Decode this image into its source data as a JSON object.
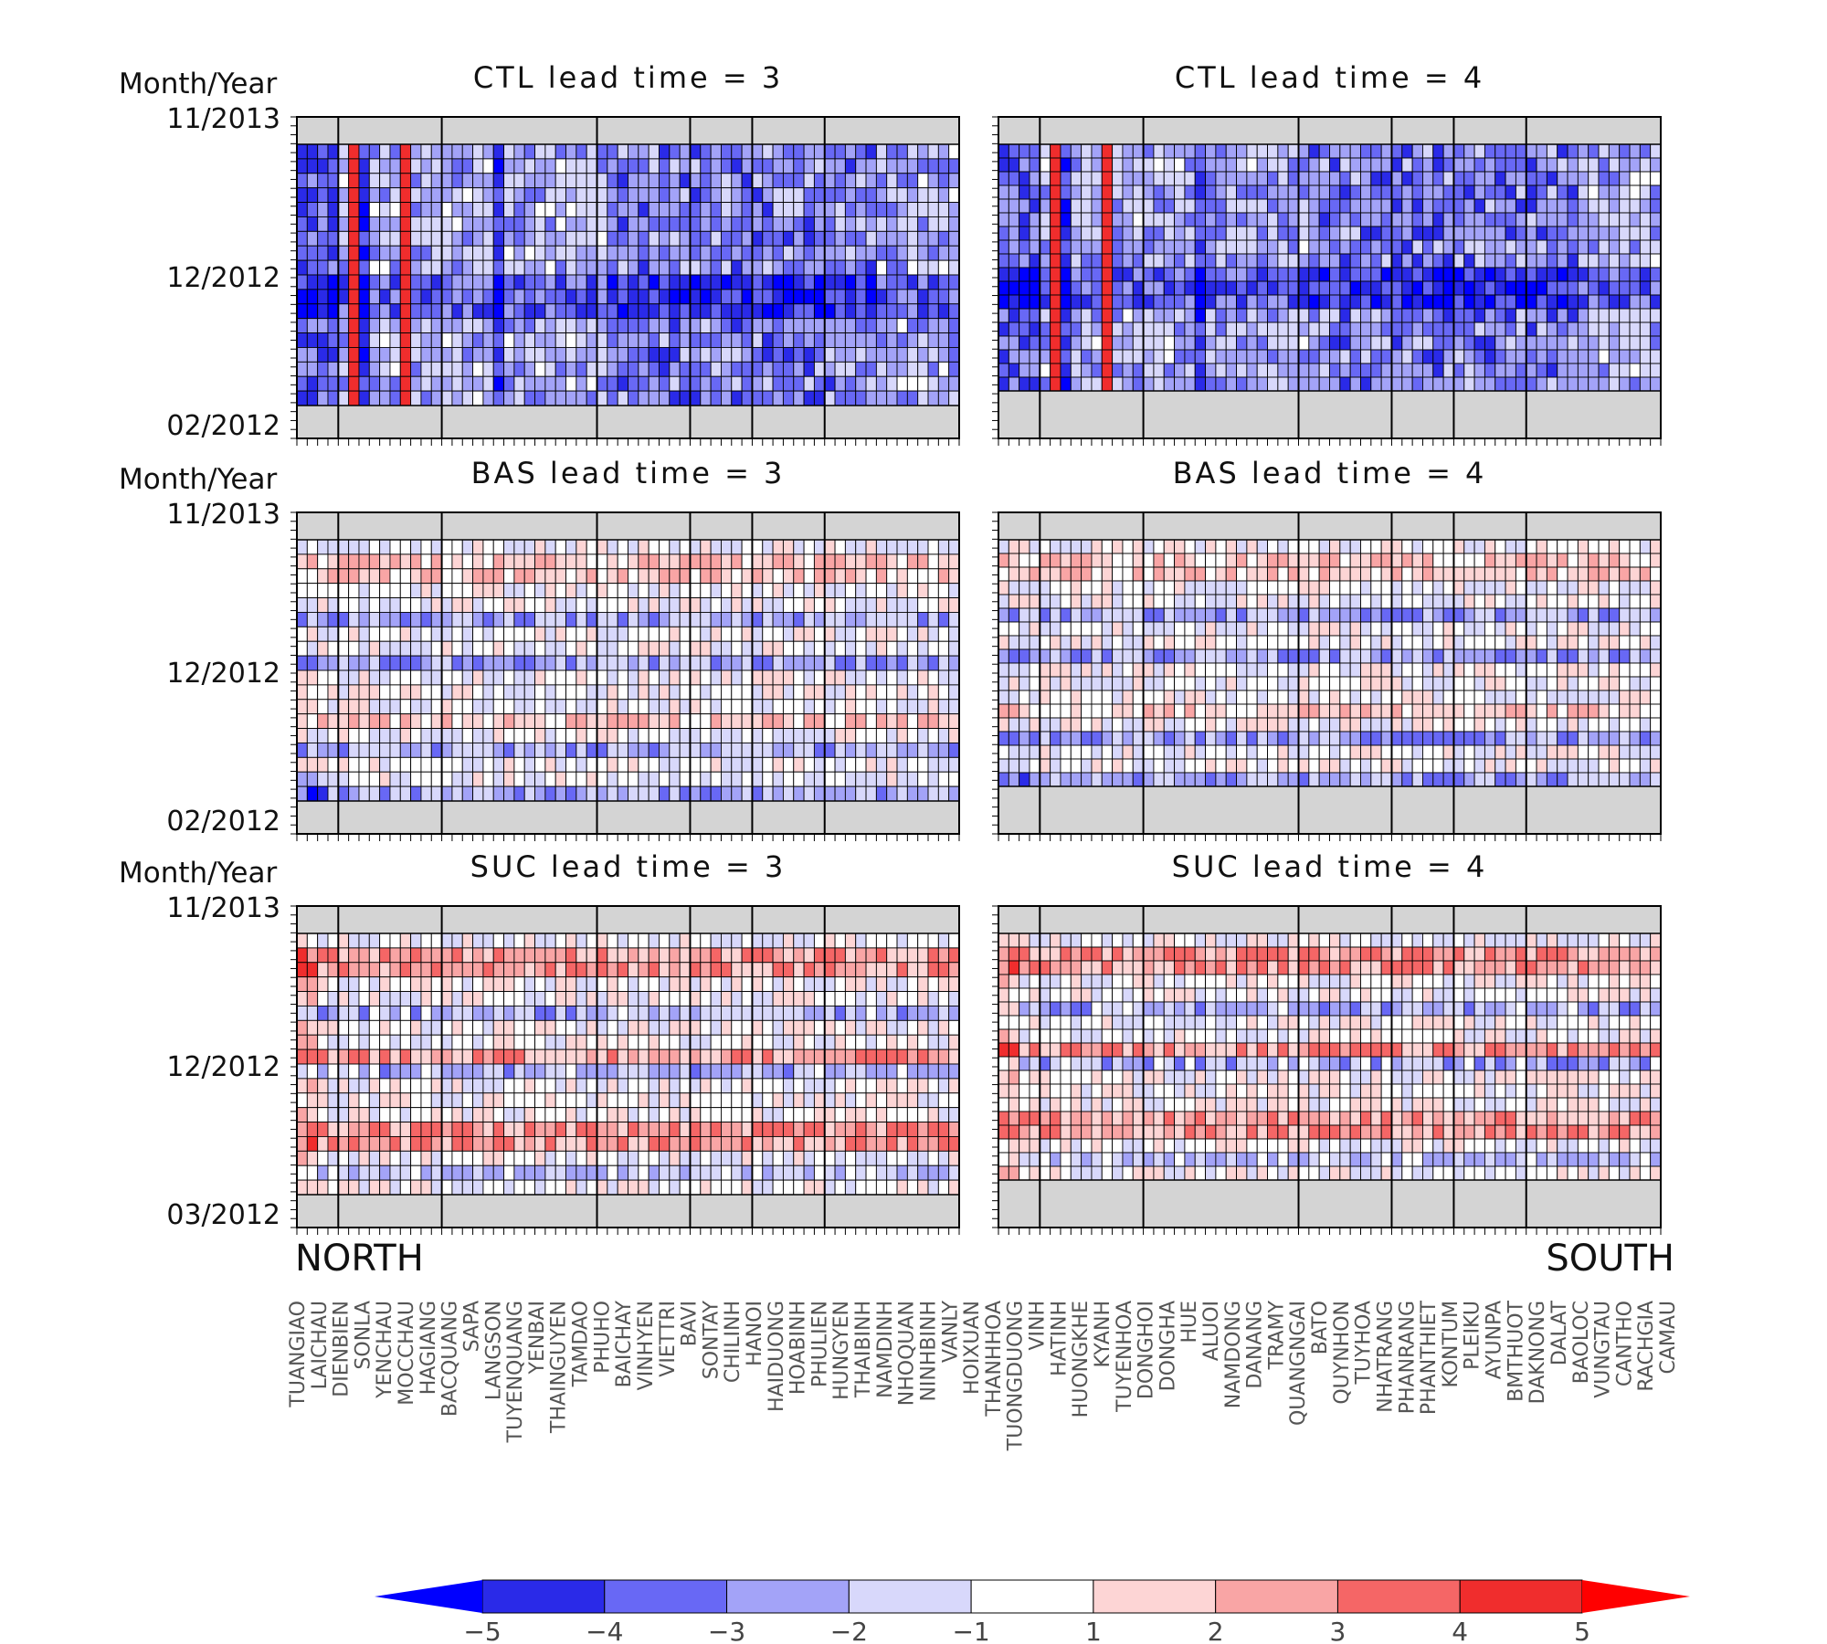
{
  "figure": {
    "direction_left": "NORTH",
    "direction_right": "SOUTH",
    "y_axis_label": "Month/Year"
  },
  "chart_data": {
    "type": "heatmap",
    "stations": [
      "TUANGIAO",
      "LAICHAU",
      "DIENBIEN",
      "SONLA",
      "YENCHAU",
      "MOCCHAU",
      "HAGIANG",
      "BACQUANG",
      "SAPA",
      "LANGSON",
      "TUYENQUANG",
      "YENBAI",
      "THAINGUYEN",
      "TAMDAO",
      "PHUHO",
      "BAICHAY",
      "VINHYEN",
      "VIETTRI",
      "BAVI",
      "SONTAY",
      "CHILINH",
      "HANOI",
      "HAIDUONG",
      "HOABINH",
      "PHULIEN",
      "HUNGYEN",
      "THAIBINH",
      "NAMDINH",
      "NHOQUAN",
      "NINHBINH",
      "VANLY",
      "HOIXUAN",
      "THANHHOA",
      "TUONGDUONG",
      "VINH",
      "HATINH",
      "HUONGKHE",
      "KYANH",
      "TUYENHOA",
      "DONGHOI",
      "DONGHA",
      "HUE",
      "ALUOI",
      "NAMDONG",
      "DANANG",
      "TRAMY",
      "QUANGNGAI",
      "BATO",
      "QUYNHON",
      "TUYHOA",
      "NHATRANG",
      "PHANRANG",
      "PHANTHIET",
      "KONTUM",
      "PLEIKU",
      "AYUNPA",
      "BMTHUOT",
      "DAKNONG",
      "DALAT",
      "BAOLOC",
      "VUNGTAU",
      "CANTHO",
      "RACHGIA",
      "CAMAU"
    ],
    "region_breaks_after_index": [
      3,
      13,
      28,
      37,
      43,
      50
    ],
    "colorbar": {
      "levels": [
        "−5",
        "−4",
        "−3",
        "−2",
        "−1",
        "1",
        "2",
        "3",
        "4",
        "5"
      ],
      "colors": [
        "#0000ff",
        "#2a2ae8",
        "#6868f5",
        "#a3a3f8",
        "#d8d8fb",
        "#ffffff",
        "#fdd5d5",
        "#f9a5a5",
        "#f56666",
        "#f02d2d",
        "#ff0000"
      ]
    },
    "panels": [
      {
        "title": "CTL lead time = 3",
        "y_ticks": [
          "11/2013",
          "12/2012",
          "02/2012"
        ],
        "seed": 11,
        "pattern": "ctl"
      },
      {
        "title": "CTL lead time = 4",
        "y_ticks": [],
        "seed": 23,
        "pattern": "ctl"
      },
      {
        "title": "BAS lead time = 3",
        "y_ticks": [
          "11/2013",
          "12/2012",
          "02/2012"
        ],
        "seed": 37,
        "pattern": "bas"
      },
      {
        "title": "BAS lead time = 4",
        "y_ticks": [],
        "seed": 41,
        "pattern": "bas"
      },
      {
        "title": "SUC lead time = 3",
        "y_ticks": [
          "11/2013",
          "12/2012",
          "03/2012"
        ],
        "seed": 53,
        "pattern": "suc"
      },
      {
        "title": "SUC lead time = 4",
        "y_ticks": [],
        "seed": 67,
        "pattern": "suc"
      }
    ]
  }
}
